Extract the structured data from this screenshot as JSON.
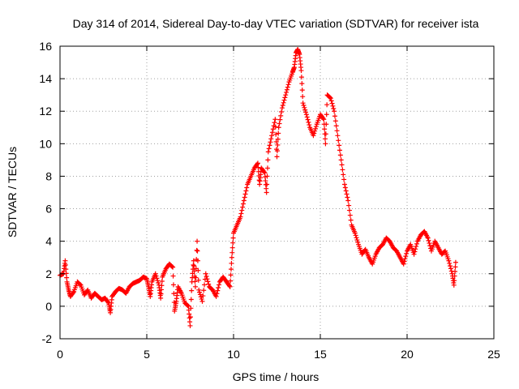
{
  "chart_data": {
    "type": "scatter",
    "title": "Day 314 of 2014, Sidereal Day-to-day VTEC variation (SDTVAR) for receiver ista",
    "xlabel": "GPS time / hours",
    "ylabel": "SDTVAR / TECUs",
    "xlim": [
      0,
      25
    ],
    "ylim": [
      -2,
      16
    ],
    "xticks": [
      "0",
      "5",
      "10",
      "15",
      "20",
      "25"
    ],
    "yticks": [
      "-2",
      "0",
      "2",
      "4",
      "6",
      "8",
      "10",
      "12",
      "14",
      "16"
    ],
    "grid": true,
    "marker": "+",
    "color": "#ff0000",
    "series": [
      {
        "name": "SDTVAR",
        "points": [
          [
            0.0,
            1.9
          ],
          [
            0.2,
            2.0
          ],
          [
            0.3,
            2.8
          ],
          [
            0.4,
            1.5
          ],
          [
            0.5,
            1.0
          ],
          [
            0.6,
            0.6
          ],
          [
            0.8,
            0.9
          ],
          [
            1.0,
            1.5
          ],
          [
            1.2,
            1.3
          ],
          [
            1.4,
            0.7
          ],
          [
            1.6,
            1.0
          ],
          [
            1.8,
            0.5
          ],
          [
            2.0,
            0.8
          ],
          [
            2.2,
            0.6
          ],
          [
            2.4,
            0.4
          ],
          [
            2.6,
            0.5
          ],
          [
            2.8,
            0.2
          ],
          [
            2.9,
            -0.4
          ],
          [
            3.0,
            0.6
          ],
          [
            3.2,
            0.9
          ],
          [
            3.4,
            1.1
          ],
          [
            3.6,
            1.0
          ],
          [
            3.8,
            0.8
          ],
          [
            4.0,
            1.2
          ],
          [
            4.2,
            1.4
          ],
          [
            4.4,
            1.5
          ],
          [
            4.6,
            1.6
          ],
          [
            4.8,
            1.8
          ],
          [
            5.0,
            1.7
          ],
          [
            5.1,
            1.2
          ],
          [
            5.2,
            0.6
          ],
          [
            5.3,
            1.5
          ],
          [
            5.5,
            2.0
          ],
          [
            5.7,
            1.3
          ],
          [
            5.8,
            0.5
          ],
          [
            5.9,
            1.8
          ],
          [
            6.1,
            2.3
          ],
          [
            6.3,
            2.6
          ],
          [
            6.5,
            2.4
          ],
          [
            6.6,
            -0.3
          ],
          [
            6.7,
            0.3
          ],
          [
            6.8,
            1.2
          ],
          [
            7.0,
            0.8
          ],
          [
            7.2,
            0.2
          ],
          [
            7.4,
            0.0
          ],
          [
            7.5,
            -1.2
          ],
          [
            7.6,
            1.5
          ],
          [
            7.7,
            2.8
          ],
          [
            7.8,
            1.2
          ],
          [
            7.9,
            4.0
          ],
          [
            8.0,
            1.0
          ],
          [
            8.2,
            0.3
          ],
          [
            8.4,
            2.0
          ],
          [
            8.6,
            1.2
          ],
          [
            8.8,
            1.0
          ],
          [
            9.0,
            0.6
          ],
          [
            9.2,
            1.5
          ],
          [
            9.4,
            1.8
          ],
          [
            9.6,
            1.5
          ],
          [
            9.8,
            1.2
          ],
          [
            9.9,
            3.0
          ],
          [
            10.0,
            4.5
          ],
          [
            10.2,
            5.0
          ],
          [
            10.4,
            5.5
          ],
          [
            10.6,
            6.5
          ],
          [
            10.8,
            7.5
          ],
          [
            11.0,
            8.0
          ],
          [
            11.2,
            8.5
          ],
          [
            11.4,
            8.8
          ],
          [
            11.5,
            7.5
          ],
          [
            11.6,
            8.5
          ],
          [
            11.8,
            8.2
          ],
          [
            11.9,
            7.0
          ],
          [
            12.0,
            9.5
          ],
          [
            12.2,
            10.5
          ],
          [
            12.4,
            11.5
          ],
          [
            12.5,
            9.2
          ],
          [
            12.6,
            11.0
          ],
          [
            12.8,
            12.2
          ],
          [
            13.0,
            13.0
          ],
          [
            13.2,
            13.8
          ],
          [
            13.4,
            14.4
          ],
          [
            13.5,
            14.7
          ],
          [
            13.6,
            15.6
          ],
          [
            13.7,
            15.8
          ],
          [
            13.8,
            15.5
          ],
          [
            13.9,
            14.5
          ],
          [
            14.0,
            12.5
          ],
          [
            14.2,
            11.8
          ],
          [
            14.4,
            11.0
          ],
          [
            14.6,
            10.5
          ],
          [
            14.8,
            11.2
          ],
          [
            15.0,
            11.8
          ],
          [
            15.2,
            11.5
          ],
          [
            15.3,
            10.0
          ],
          [
            15.4,
            13.0
          ],
          [
            15.6,
            12.8
          ],
          [
            15.8,
            12.0
          ],
          [
            16.0,
            10.5
          ],
          [
            16.2,
            9.0
          ],
          [
            16.4,
            7.5
          ],
          [
            16.6,
            6.5
          ],
          [
            16.8,
            5.0
          ],
          [
            17.0,
            4.5
          ],
          [
            17.2,
            3.8
          ],
          [
            17.4,
            3.2
          ],
          [
            17.6,
            3.5
          ],
          [
            17.8,
            3.0
          ],
          [
            18.0,
            2.6
          ],
          [
            18.2,
            3.2
          ],
          [
            18.4,
            3.6
          ],
          [
            18.6,
            3.8
          ],
          [
            18.8,
            4.2
          ],
          [
            19.0,
            4.0
          ],
          [
            19.2,
            3.6
          ],
          [
            19.4,
            3.4
          ],
          [
            19.6,
            3.0
          ],
          [
            19.8,
            2.6
          ],
          [
            20.0,
            3.4
          ],
          [
            20.2,
            3.8
          ],
          [
            20.4,
            3.2
          ],
          [
            20.6,
            4.0
          ],
          [
            20.8,
            4.4
          ],
          [
            21.0,
            4.6
          ],
          [
            21.2,
            4.2
          ],
          [
            21.4,
            3.4
          ],
          [
            21.6,
            4.0
          ],
          [
            21.8,
            3.6
          ],
          [
            22.0,
            3.2
          ],
          [
            22.2,
            3.4
          ],
          [
            22.4,
            2.8
          ],
          [
            22.6,
            2.0
          ],
          [
            22.7,
            1.3
          ],
          [
            22.8,
            2.7
          ]
        ]
      }
    ]
  }
}
